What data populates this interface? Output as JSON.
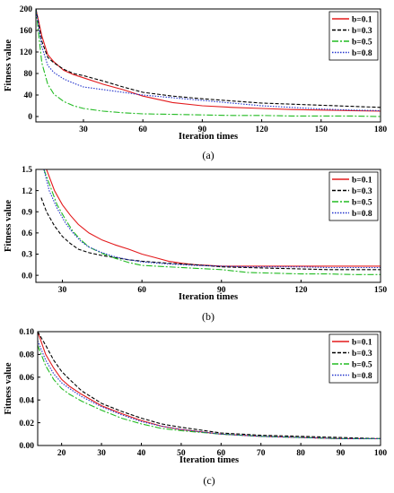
{
  "chart_data": [
    {
      "type": "line",
      "panel_label": "(a)",
      "xlabel": "Iteration times",
      "ylabel": "Fitness value",
      "xlim": [
        6,
        180
      ],
      "ylim": [
        -10,
        200
      ],
      "xticks": [
        "30",
        "60",
        "90",
        "120",
        "150",
        "180"
      ],
      "xtick_values": [
        30,
        60,
        90,
        120,
        150,
        180
      ],
      "yticks": [
        "0",
        "40",
        "80",
        "120",
        "160",
        "200"
      ],
      "ytick_values": [
        0,
        40,
        80,
        120,
        160,
        200
      ],
      "legend_position": "top-right",
      "series": [
        {
          "name": "b=0.1",
          "color": "#e31a1c",
          "dash": "solid",
          "x": [
            6,
            9,
            12,
            15,
            20,
            25,
            30,
            40,
            50,
            60,
            75,
            90,
            105,
            120,
            135,
            150,
            165,
            180
          ],
          "y": [
            200,
            150,
            115,
            102,
            86,
            78,
            72,
            60,
            50,
            38,
            26,
            20,
            17,
            15,
            13,
            12,
            11,
            10
          ]
        },
        {
          "name": "b=0.3",
          "color": "#000000",
          "dash": "4,2",
          "x": [
            6,
            9,
            12,
            15,
            20,
            25,
            30,
            40,
            50,
            60,
            75,
            90,
            105,
            120,
            135,
            150,
            165,
            180
          ],
          "y": [
            200,
            140,
            110,
            100,
            88,
            80,
            76,
            66,
            55,
            45,
            38,
            33,
            29,
            25,
            23,
            21,
            19,
            17
          ]
        },
        {
          "name": "b=0.5",
          "color": "#22bb22",
          "dash": "7,2,2,2",
          "x": [
            6,
            9,
            12,
            15,
            20,
            25,
            30,
            40,
            50,
            60,
            75,
            90,
            105,
            120,
            135,
            150,
            165,
            180
          ],
          "y": [
            200,
            100,
            60,
            42,
            28,
            20,
            15,
            10,
            7,
            5,
            4,
            3,
            2,
            2,
            1,
            1,
            1,
            0
          ]
        },
        {
          "name": "b=0.8",
          "color": "#2233cc",
          "dash": "1.5,1.5",
          "x": [
            6,
            9,
            12,
            15,
            20,
            25,
            30,
            40,
            50,
            60,
            75,
            90,
            105,
            120,
            135,
            150,
            165,
            180
          ],
          "y": [
            200,
            130,
            95,
            82,
            70,
            62,
            55,
            50,
            45,
            40,
            35,
            30,
            25,
            20,
            17,
            14,
            12,
            11
          ]
        }
      ]
    },
    {
      "type": "line",
      "panel_label": "(b)",
      "xlabel": "Iteration times",
      "ylabel": "Fitness value",
      "xlim": [
        20,
        150
      ],
      "ylim": [
        -0.1,
        1.5
      ],
      "xticks": [
        "30",
        "60",
        "90",
        "120",
        "150"
      ],
      "xtick_values": [
        30,
        60,
        90,
        120,
        150
      ],
      "yticks": [
        "0.0",
        "0.3",
        "0.6",
        "0.9",
        "1.2",
        "1.5"
      ],
      "ytick_values": [
        0.0,
        0.3,
        0.6,
        0.9,
        1.2,
        1.5
      ],
      "legend_position": "top-right",
      "series": [
        {
          "name": "b=0.1",
          "color": "#e31a1c",
          "dash": "solid",
          "x": [
            24,
            27,
            30,
            33,
            36,
            40,
            45,
            50,
            55,
            60,
            65,
            70,
            75,
            80,
            85,
            90,
            100,
            110,
            120,
            130,
            140,
            150
          ],
          "y": [
            1.5,
            1.2,
            1.0,
            0.85,
            0.72,
            0.6,
            0.5,
            0.43,
            0.37,
            0.3,
            0.25,
            0.2,
            0.17,
            0.15,
            0.14,
            0.13,
            0.13,
            0.13,
            0.13,
            0.13,
            0.13,
            0.13
          ]
        },
        {
          "name": "b=0.3",
          "color": "#000000",
          "dash": "4,2",
          "x": [
            22,
            24,
            27,
            30,
            33,
            36,
            40,
            45,
            50,
            55,
            60,
            70,
            80,
            90,
            100,
            110,
            120,
            130,
            140,
            150
          ],
          "y": [
            1.1,
            0.9,
            0.7,
            0.55,
            0.45,
            0.37,
            0.32,
            0.28,
            0.25,
            0.22,
            0.2,
            0.17,
            0.15,
            0.12,
            0.11,
            0.1,
            0.09,
            0.08,
            0.08,
            0.08
          ]
        },
        {
          "name": "b=0.5",
          "color": "#22bb22",
          "dash": "7,2,2,2",
          "x": [
            23,
            25,
            28,
            31,
            34,
            37,
            40,
            45,
            50,
            55,
            60,
            70,
            80,
            90,
            100,
            110,
            120,
            130,
            140,
            150
          ],
          "y": [
            1.5,
            1.3,
            1.0,
            0.8,
            0.62,
            0.5,
            0.4,
            0.31,
            0.24,
            0.18,
            0.14,
            0.12,
            0.1,
            0.08,
            0.04,
            0.03,
            0.02,
            0.02,
            0.01,
            0.01
          ]
        },
        {
          "name": "b=0.8",
          "color": "#2233cc",
          "dash": "1.5,1.5",
          "x": [
            23,
            25,
            28,
            31,
            34,
            37,
            40,
            45,
            50,
            55,
            60,
            70,
            80,
            90,
            100,
            110,
            120,
            130,
            140,
            150
          ],
          "y": [
            1.5,
            1.2,
            0.95,
            0.75,
            0.6,
            0.48,
            0.4,
            0.32,
            0.26,
            0.22,
            0.19,
            0.16,
            0.14,
            0.13,
            0.12,
            0.12,
            0.12,
            0.11,
            0.11,
            0.11
          ]
        }
      ]
    },
    {
      "type": "line",
      "panel_label": "(c)",
      "xlabel": "Iteration times",
      "ylabel": "Fitness value",
      "xlim": [
        14,
        100
      ],
      "ylim": [
        0,
        0.1
      ],
      "xticks": [
        "20",
        "30",
        "40",
        "50",
        "60",
        "70",
        "80",
        "90",
        "100"
      ],
      "xtick_values": [
        20,
        30,
        40,
        50,
        60,
        70,
        80,
        90,
        100
      ],
      "yticks": [
        "0.00",
        "0.02",
        "0.04",
        "0.06",
        "0.08",
        "0.10"
      ],
      "ytick_values": [
        0.0,
        0.02,
        0.04,
        0.06,
        0.08,
        0.1
      ],
      "legend_position": "top-right",
      "series": [
        {
          "name": "b=0.1",
          "color": "#e31a1c",
          "dash": "solid",
          "x": [
            14,
            16,
            18,
            20,
            22,
            25,
            30,
            35,
            40,
            45,
            50,
            60,
            70,
            80,
            90,
            100
          ],
          "y": [
            0.1,
            0.08,
            0.068,
            0.058,
            0.052,
            0.045,
            0.035,
            0.028,
            0.022,
            0.017,
            0.014,
            0.01,
            0.008,
            0.007,
            0.006,
            0.006
          ]
        },
        {
          "name": "b=0.3",
          "color": "#000000",
          "dash": "4,2",
          "x": [
            14,
            16,
            18,
            20,
            22,
            25,
            30,
            35,
            40,
            45,
            50,
            60,
            70,
            80,
            90,
            100
          ],
          "y": [
            0.1,
            0.088,
            0.075,
            0.065,
            0.058,
            0.048,
            0.037,
            0.03,
            0.024,
            0.019,
            0.016,
            0.011,
            0.009,
            0.008,
            0.007,
            0.006
          ]
        },
        {
          "name": "b=0.5",
          "color": "#22bb22",
          "dash": "7,2,2,2",
          "x": [
            14,
            16,
            18,
            20,
            22,
            25,
            30,
            35,
            40,
            45,
            50,
            60,
            70,
            80,
            90,
            100
          ],
          "y": [
            0.088,
            0.07,
            0.058,
            0.05,
            0.045,
            0.039,
            0.031,
            0.024,
            0.019,
            0.015,
            0.013,
            0.01,
            0.008,
            0.007,
            0.006,
            0.006
          ]
        },
        {
          "name": "b=0.8",
          "color": "#2233cc",
          "dash": "1.5,1.5",
          "x": [
            14,
            16,
            18,
            20,
            22,
            25,
            30,
            35,
            40,
            45,
            50,
            60,
            70,
            80,
            90,
            100
          ],
          "y": [
            0.092,
            0.075,
            0.063,
            0.055,
            0.05,
            0.043,
            0.034,
            0.027,
            0.021,
            0.017,
            0.014,
            0.01,
            0.008,
            0.007,
            0.006,
            0.006
          ]
        }
      ]
    }
  ]
}
